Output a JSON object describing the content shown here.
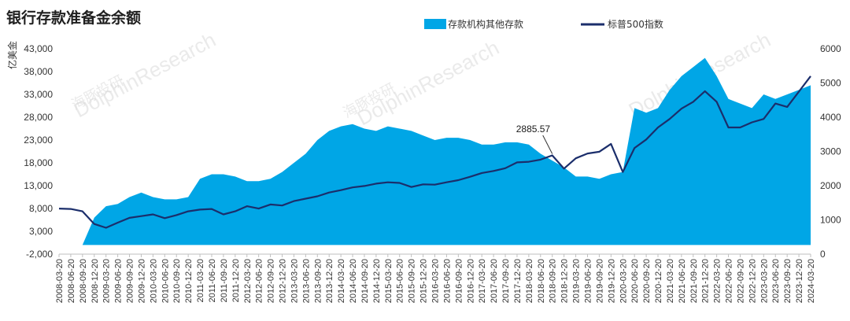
{
  "title": "银行存款准备金余额",
  "unit_label": "亿美金",
  "watermark": {
    "brand": "DolphinResearch",
    "brand_cn": "海豚投研"
  },
  "chart_data": {
    "type": "area+line",
    "title": "银行存款准备金余额",
    "legend": [
      {
        "name": "存款机构其他存款",
        "color": "#00A6E6",
        "type": "area"
      },
      {
        "name": "标普500指数",
        "color": "#1B2E6B",
        "type": "line"
      }
    ],
    "legend_position": "top-right",
    "ylabel_left": "亿美金",
    "ylim_left": [
      -2000,
      43000
    ],
    "yticks_left": [
      "-2,000",
      "3,000",
      "8,000",
      "13,000",
      "18,000",
      "23,000",
      "28,000",
      "33,000",
      "38,000",
      "43,000"
    ],
    "ylim_right": [
      0,
      6000
    ],
    "yticks_right": [
      "0",
      "1000",
      "2000",
      "3000",
      "4000",
      "5000",
      "6000"
    ],
    "grid": false,
    "xticks": [
      "2008-03-20",
      "2008-06-20",
      "2008-09-20",
      "2008-12-20",
      "2009-03-20",
      "2009-06-20",
      "2009-09-20",
      "2009-12-20",
      "2010-03-20",
      "2010-06-20",
      "2010-09-20",
      "2010-12-20",
      "2011-03-20",
      "2011-06-20",
      "2011-09-20",
      "2011-12-20",
      "2012-03-20",
      "2012-06-20",
      "2012-09-20",
      "2012-12-20",
      "2013-03-20",
      "2013-06-20",
      "2013-09-20",
      "2013-12-20",
      "2014-03-20",
      "2014-06-20",
      "2014-09-20",
      "2014-12-20",
      "2015-03-20",
      "2015-06-20",
      "2015-09-20",
      "2015-12-20",
      "2016-03-20",
      "2016-06-20",
      "2016-09-20",
      "2016-12-20",
      "2017-03-20",
      "2017-06-20",
      "2017-09-20",
      "2017-12-20",
      "2018-03-20",
      "2018-06-20",
      "2018-09-20",
      "2018-12-20",
      "2019-03-20",
      "2019-06-20",
      "2019-09-20",
      "2019-12-20",
      "2020-03-20",
      "2020-06-20",
      "2020-09-20",
      "2020-12-20",
      "2021-03-20",
      "2021-06-20",
      "2021-09-20",
      "2021-12-20",
      "2022-03-20",
      "2022-06-20",
      "2022-09-20",
      "2022-12-20",
      "2023-03-20",
      "2023-06-20",
      "2023-09-20",
      "2023-12-20",
      "2024-03-20"
    ],
    "annotation": {
      "text": "2885.57",
      "x": "2018-09-20",
      "y": 2885.57,
      "axis": "right"
    },
    "series": [
      {
        "name": "存款机构其他存款",
        "axis": "left",
        "x": [
          "2008-03-20",
          "2008-06-20",
          "2008-09-20",
          "2008-12-20",
          "2009-03-20",
          "2009-06-20",
          "2009-09-20",
          "2009-12-20",
          "2010-03-20",
          "2010-06-20",
          "2010-09-20",
          "2010-12-20",
          "2011-03-20",
          "2011-06-20",
          "2011-09-20",
          "2011-12-20",
          "2012-03-20",
          "2012-06-20",
          "2012-09-20",
          "2012-12-20",
          "2013-03-20",
          "2013-06-20",
          "2013-09-20",
          "2013-12-20",
          "2014-03-20",
          "2014-06-20",
          "2014-09-20",
          "2014-12-20",
          "2015-03-20",
          "2015-06-20",
          "2015-09-20",
          "2015-12-20",
          "2016-03-20",
          "2016-06-20",
          "2016-09-20",
          "2016-12-20",
          "2017-03-20",
          "2017-06-20",
          "2017-09-20",
          "2017-12-20",
          "2018-03-20",
          "2018-06-20",
          "2018-09-20",
          "2018-12-20",
          "2019-03-20",
          "2019-06-20",
          "2019-09-20",
          "2019-12-20",
          "2020-03-20",
          "2020-06-20",
          "2020-09-20",
          "2020-12-20",
          "2021-03-20",
          "2021-06-20",
          "2021-09-20",
          "2021-12-20",
          "2022-03-20",
          "2022-06-20",
          "2022-09-20",
          "2022-12-20",
          "2023-03-20",
          "2023-06-20",
          "2023-09-20",
          "2023-12-20",
          "2024-03-20"
        ],
        "values": [
          0,
          0,
          0,
          6000,
          8500,
          9000,
          10500,
          11500,
          10500,
          10000,
          10000,
          10500,
          14500,
          15500,
          15500,
          15000,
          14000,
          14000,
          14500,
          16000,
          18000,
          20000,
          23000,
          25000,
          26000,
          26500,
          25500,
          25000,
          26000,
          25500,
          25000,
          24000,
          23000,
          23500,
          23500,
          23000,
          22000,
          22000,
          22500,
          22500,
          22000,
          20000,
          18500,
          17000,
          15000,
          15000,
          14500,
          15500,
          16000,
          30000,
          29000,
          30000,
          34000,
          37000,
          39000,
          41000,
          37000,
          32000,
          31000,
          30000,
          33000,
          32000,
          33000,
          34000,
          35000
        ]
      },
      {
        "name": "标普500指数",
        "axis": "right",
        "x": [
          "2008-03-20",
          "2008-06-20",
          "2008-09-20",
          "2008-12-20",
          "2009-03-20",
          "2009-06-20",
          "2009-09-20",
          "2009-12-20",
          "2010-03-20",
          "2010-06-20",
          "2010-09-20",
          "2010-12-20",
          "2011-03-20",
          "2011-06-20",
          "2011-09-20",
          "2011-12-20",
          "2012-03-20",
          "2012-06-20",
          "2012-09-20",
          "2012-12-20",
          "2013-03-20",
          "2013-06-20",
          "2013-09-20",
          "2013-12-20",
          "2014-03-20",
          "2014-06-20",
          "2014-09-20",
          "2014-12-20",
          "2015-03-20",
          "2015-06-20",
          "2015-09-20",
          "2015-12-20",
          "2016-03-20",
          "2016-06-20",
          "2016-09-20",
          "2016-12-20",
          "2017-03-20",
          "2017-06-20",
          "2017-09-20",
          "2017-12-20",
          "2018-03-20",
          "2018-06-20",
          "2018-09-20",
          "2018-12-20",
          "2019-03-20",
          "2019-06-20",
          "2019-09-20",
          "2019-12-20",
          "2020-03-20",
          "2020-06-20",
          "2020-09-20",
          "2020-12-20",
          "2021-03-20",
          "2021-06-20",
          "2021-09-20",
          "2021-12-20",
          "2022-03-20",
          "2022-06-20",
          "2022-09-20",
          "2022-12-20",
          "2023-03-20",
          "2023-06-20",
          "2023-09-20",
          "2023-12-20",
          "2024-03-20"
        ],
        "values": [
          1330,
          1320,
          1250,
          880,
          770,
          920,
          1060,
          1110,
          1160,
          1050,
          1140,
          1250,
          1300,
          1320,
          1160,
          1250,
          1400,
          1330,
          1450,
          1420,
          1550,
          1620,
          1690,
          1800,
          1870,
          1950,
          1990,
          2060,
          2100,
          2080,
          1960,
          2040,
          2030,
          2100,
          2160,
          2260,
          2370,
          2430,
          2510,
          2680,
          2700,
          2760,
          2885.57,
          2500,
          2800,
          2940,
          2990,
          3220,
          2400,
          3100,
          3350,
          3700,
          3950,
          4250,
          4450,
          4760,
          4450,
          3700,
          3700,
          3850,
          3950,
          4400,
          4300,
          4750,
          5200
        ]
      }
    ]
  }
}
